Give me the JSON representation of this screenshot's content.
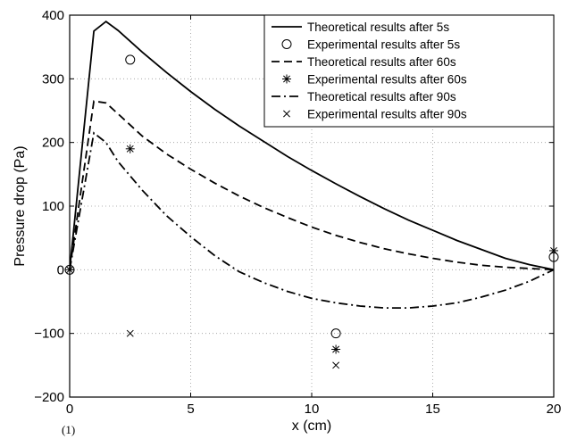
{
  "chart_data": {
    "type": "line",
    "panel_label": "(1)",
    "xlabel": "x (cm)",
    "ylabel": "Pressure drop (Pa)",
    "xlim": [
      0,
      20
    ],
    "ylim": [
      -200,
      400
    ],
    "xticks": [
      0,
      5,
      10,
      15,
      20
    ],
    "yticks": [
      -200,
      -100,
      0,
      100,
      200,
      300,
      400
    ],
    "xtick_labels": [
      "0",
      "5",
      "10",
      "15",
      "20"
    ],
    "ytick_labels": [
      "−200",
      "−100",
      "0",
      "100",
      "200",
      "300",
      "400"
    ],
    "grid": true,
    "legend_position": "top-right",
    "series": [
      {
        "name": "Theoretical results after 5s",
        "kind": "line",
        "dash": "solid",
        "color": "#000000",
        "x": [
          0,
          1,
          1.5,
          2,
          3,
          4,
          5,
          6,
          7,
          8,
          9,
          10,
          11,
          12,
          13,
          14,
          15,
          16,
          17,
          18,
          19,
          20
        ],
        "y": [
          0,
          375,
          390,
          376,
          342,
          310,
          280,
          252,
          226,
          202,
          178,
          156,
          135,
          115,
          96,
          78,
          62,
          46,
          32,
          18,
          8,
          0
        ]
      },
      {
        "name": "Experimental results after 5s",
        "kind": "marker",
        "marker": "circle",
        "color": "#000000",
        "x": [
          0,
          2.5,
          11,
          20
        ],
        "y": [
          0,
          330,
          -100,
          20
        ]
      },
      {
        "name": "Theoretical results after 60s",
        "kind": "line",
        "dash": "dashed",
        "color": "#000000",
        "x": [
          0,
          1,
          1.5,
          2,
          3,
          4,
          5,
          6,
          7,
          8,
          9,
          10,
          11,
          12,
          13,
          14,
          15,
          16,
          17,
          18,
          19,
          20
        ],
        "y": [
          0,
          265,
          262,
          245,
          210,
          182,
          158,
          136,
          116,
          98,
          82,
          67,
          54,
          43,
          33,
          25,
          18,
          12,
          7,
          4,
          2,
          0
        ]
      },
      {
        "name": "Experimental results after 60s",
        "kind": "marker",
        "marker": "asterisk",
        "color": "#000000",
        "x": [
          0,
          2.5,
          11,
          20
        ],
        "y": [
          0,
          190,
          -125,
          30
        ]
      },
      {
        "name": "Theoretical results after 90s",
        "kind": "line",
        "dash": "dashdot",
        "color": "#000000",
        "x": [
          0,
          1,
          1.5,
          2,
          3,
          4,
          5,
          6,
          7,
          8,
          9,
          10,
          11,
          12,
          13,
          14,
          15,
          16,
          17,
          18,
          19,
          20
        ],
        "y": [
          0,
          215,
          200,
          170,
          125,
          85,
          52,
          22,
          -3,
          -20,
          -34,
          -45,
          -52,
          -57,
          -60,
          -60,
          -57,
          -52,
          -43,
          -32,
          -18,
          0
        ]
      },
      {
        "name": "Experimental results after 90s",
        "kind": "marker",
        "marker": "cross",
        "color": "#000000",
        "x": [
          2.5,
          11
        ],
        "y": [
          -100,
          -150
        ]
      }
    ]
  }
}
